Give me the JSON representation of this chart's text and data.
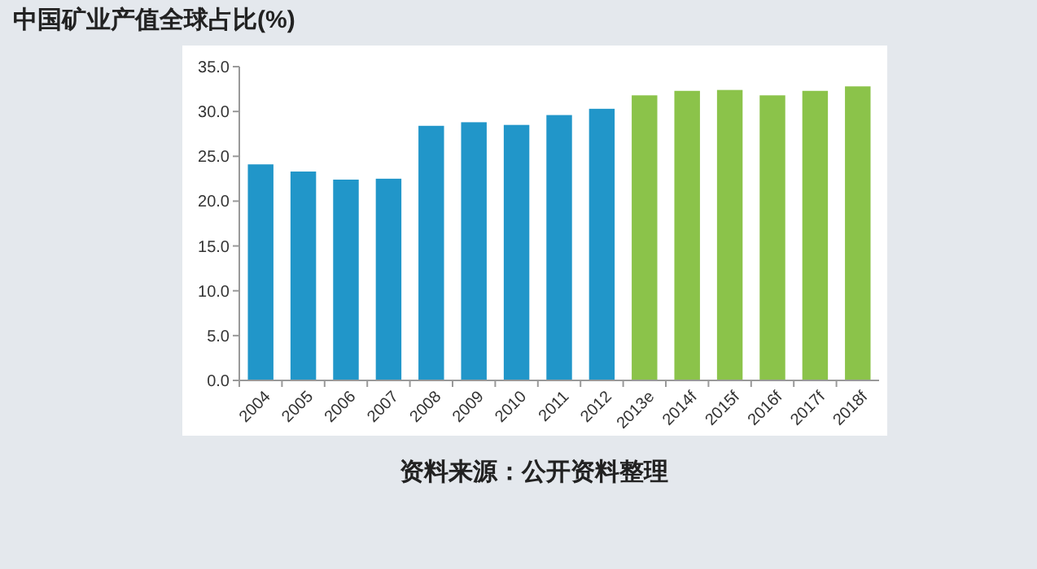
{
  "chart_data": {
    "type": "bar",
    "title": "中国矿业产值全球占比(%)",
    "categories": [
      "2004",
      "2005",
      "2006",
      "2007",
      "2008",
      "2009",
      "2010",
      "2011",
      "2012",
      "2013e",
      "2014f",
      "2015f",
      "2016f",
      "2017f",
      "2018f"
    ],
    "values": [
      24.1,
      23.3,
      22.4,
      22.5,
      28.4,
      28.8,
      28.5,
      29.6,
      30.3,
      31.8,
      32.3,
      32.4,
      31.8,
      32.3,
      32.8
    ],
    "colors": [
      "#2196c9",
      "#2196c9",
      "#2196c9",
      "#2196c9",
      "#2196c9",
      "#2196c9",
      "#2196c9",
      "#2196c9",
      "#2196c9",
      "#8bc34a",
      "#8bc34a",
      "#8bc34a",
      "#8bc34a",
      "#8bc34a",
      "#8bc34a"
    ],
    "ylim": [
      0,
      35
    ],
    "yticks": [
      {
        "value": 0,
        "label": "0.0"
      },
      {
        "value": 5,
        "label": "5.0"
      },
      {
        "value": 10,
        "label": "10.0"
      },
      {
        "value": 15,
        "label": "15.0"
      },
      {
        "value": 20,
        "label": "20.0"
      },
      {
        "value": 25,
        "label": "25.0"
      },
      {
        "value": 30,
        "label": "30.0"
      },
      {
        "value": 35,
        "label": "35.0"
      }
    ],
    "grid": false,
    "annotations": [
      "资料来源：公开资料整理"
    ]
  }
}
